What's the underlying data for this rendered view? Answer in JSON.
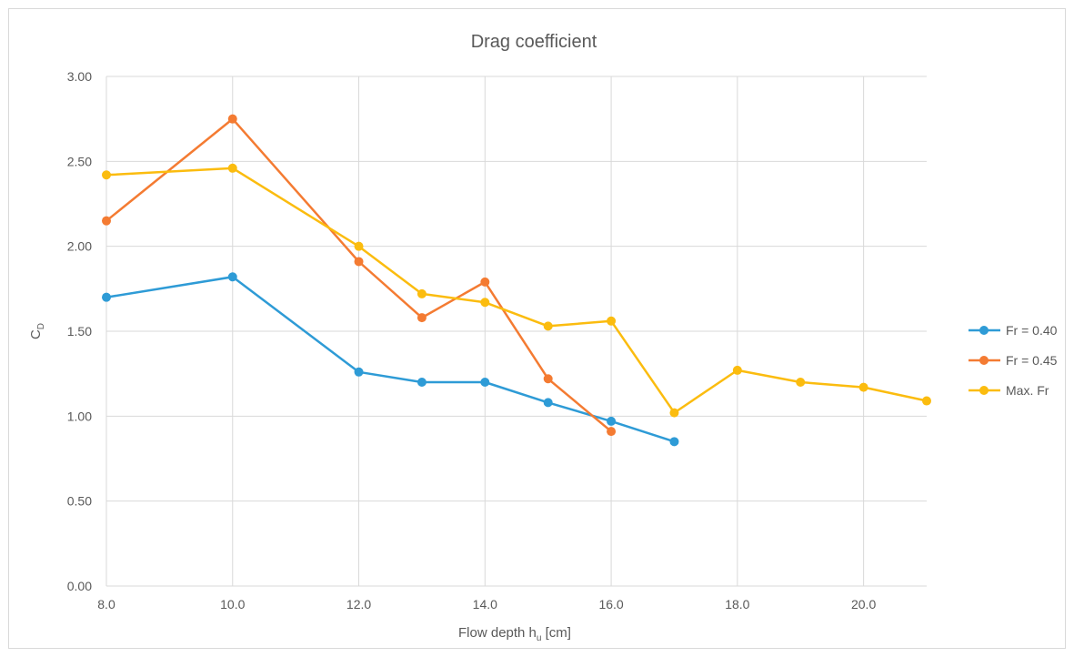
{
  "chart_data": {
    "type": "line",
    "title": "Drag coefficient",
    "xlabel": {
      "main": "Flow depth h",
      "sub": "u",
      "suffix": " [cm]"
    },
    "ylabel": {
      "main": "C",
      "sub": "D"
    },
    "xlim": [
      8,
      21
    ],
    "ylim": [
      0,
      3
    ],
    "xticks": [
      8,
      10,
      12,
      14,
      16,
      18,
      20
    ],
    "xtick_labels": [
      "8.0",
      "10.0",
      "12.0",
      "14.0",
      "16.0",
      "18.0",
      "20.0"
    ],
    "yticks": [
      0,
      0.5,
      1,
      1.5,
      2,
      2.5,
      3
    ],
    "ytick_labels": [
      "0.00",
      "0.50",
      "1.00",
      "1.50",
      "2.00",
      "2.50",
      "3.00"
    ],
    "grid": true,
    "legend_position": "right",
    "series": [
      {
        "name": "Fr = 0.40",
        "color": "#2e9bd6",
        "x": [
          8,
          10,
          12,
          13,
          14,
          15,
          16,
          17
        ],
        "y": [
          1.7,
          1.82,
          1.26,
          1.2,
          1.2,
          1.08,
          0.97,
          0.85
        ]
      },
      {
        "name": "Fr = 0.45",
        "color": "#f47b32",
        "x": [
          8,
          10,
          12,
          13,
          14,
          15,
          16
        ],
        "y": [
          2.15,
          2.75,
          1.91,
          1.58,
          1.79,
          1.22,
          0.91
        ]
      },
      {
        "name": "Max. Fr",
        "color": "#fbbc0f",
        "x": [
          8,
          10,
          12,
          13,
          14,
          15,
          16,
          17,
          18,
          19,
          20,
          21
        ],
        "y": [
          2.42,
          2.46,
          2.0,
          1.72,
          1.67,
          1.53,
          1.56,
          1.02,
          1.27,
          1.2,
          1.17,
          1.09
        ]
      }
    ]
  }
}
